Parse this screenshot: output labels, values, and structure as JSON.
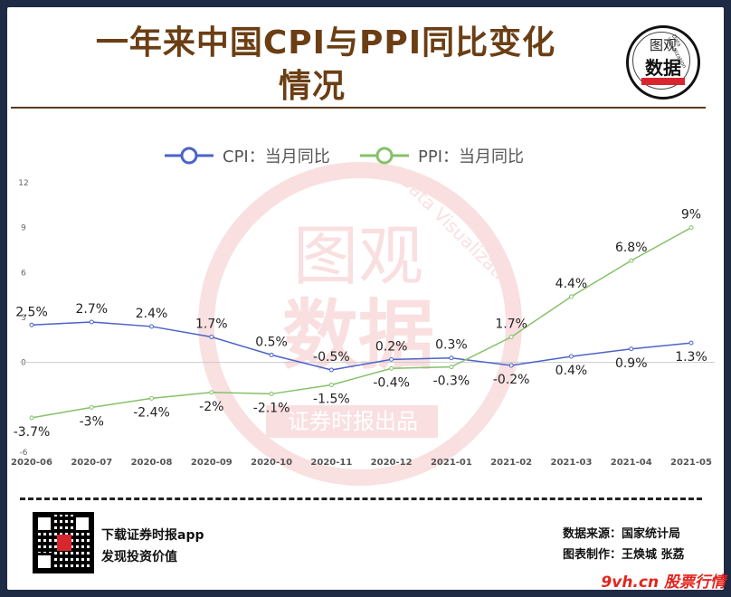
{
  "title": "一年来中国CPI与PPI同比变化情况",
  "title_line1": "一年来中国CPI与PPI同比变化",
  "title_line2": "情况",
  "logo": {
    "top": "图观",
    "main": "数据",
    "banner": "证券时报出品",
    "arc_text": "Data Visualization"
  },
  "chart_watermark": {
    "line1": "图观",
    "line2": "数据",
    "banner": "证券时报出品",
    "arc_text": "Data Visualization"
  },
  "colors": {
    "cpi": "#4b63c8",
    "ppi": "#86c16a",
    "title": "#6b3e14",
    "accent_red": "#d8262e"
  },
  "chart_data": {
    "type": "line",
    "categories": [
      "2020-06",
      "2020-07",
      "2020-08",
      "2020-09",
      "2020-10",
      "2020-11",
      "2020-12",
      "2021-01",
      "2021-02",
      "2021-03",
      "2021-04",
      "2021-05"
    ],
    "series": [
      {
        "name": "CPI：当月同比",
        "values": [
          2.5,
          2.7,
          2.4,
          1.7,
          0.5,
          -0.5,
          0.2,
          0.3,
          -0.2,
          0.4,
          0.9,
          1.3
        ],
        "labels": [
          "2.5%",
          "2.7%",
          "2.4%",
          "1.7%",
          "0.5%",
          "-0.5%",
          "0.2%",
          "0.3%",
          "-0.2%",
          "0.4%",
          "0.9%",
          "1.3%"
        ]
      },
      {
        "name": "PPI：当月同比",
        "values": [
          -3.7,
          -3,
          -2.4,
          -2,
          -2.1,
          -1.5,
          -0.4,
          -0.3,
          1.7,
          4.4,
          6.8,
          9
        ],
        "labels": [
          "-3.7%",
          "-3%",
          "-2.4%",
          "-2%",
          "-2.1%",
          "-1.5%",
          "-0.4%",
          "-0.3%",
          "1.7%",
          "4.4%",
          "6.8%",
          "9%"
        ]
      }
    ],
    "yticks": [
      12,
      9,
      6,
      3,
      0,
      -6
    ],
    "ylim": [
      -6,
      12
    ],
    "legend_position": "top-center",
    "grid": false
  },
  "footer": {
    "download": "下载证券时报app",
    "slogan": "发现投资价值",
    "source": "数据来源：国家统计局",
    "author": "图表制作：王焕城 张荔",
    "site": "9vh.cn 股票行情"
  }
}
